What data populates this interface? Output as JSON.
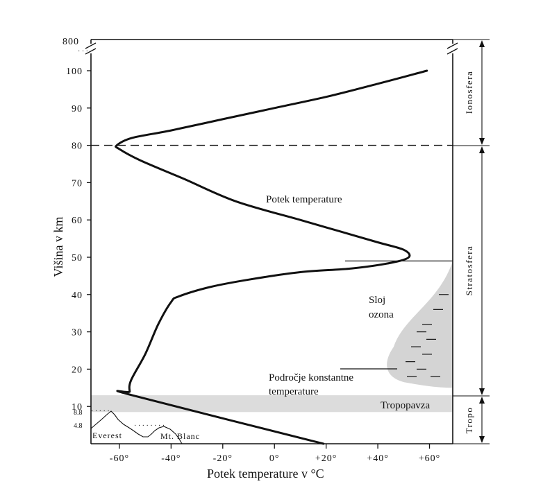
{
  "chart_data": {
    "type": "line",
    "xlabel": "Potek temperature v °C",
    "ylabel": "Višina v km",
    "x_ticks": [
      "-60°",
      "-40°",
      "-20°",
      "0°",
      "+20°",
      "+40°",
      "+60°"
    ],
    "y_ticks": [
      "10",
      "20",
      "30",
      "40",
      "50",
      "60",
      "70",
      "80",
      "90",
      "100"
    ],
    "y_top_label": "800",
    "xlim": [
      -71,
      69
    ],
    "ylim": [
      0,
      100
    ],
    "series": [
      {
        "name": "Potek temperature",
        "points": [
          [
            19,
            0
          ],
          [
            -55,
            13
          ],
          [
            -56,
            14
          ],
          [
            -55.5,
            17
          ],
          [
            -50,
            24
          ],
          [
            -45,
            32
          ],
          [
            -40,
            38
          ],
          [
            -37,
            39.5
          ],
          [
            -25,
            42
          ],
          [
            -10,
            44
          ],
          [
            10,
            46
          ],
          [
            30,
            47
          ],
          [
            45,
            48.5
          ],
          [
            52,
            50
          ],
          [
            50,
            52
          ],
          [
            40,
            54
          ],
          [
            25,
            57
          ],
          [
            10,
            60
          ],
          [
            -15,
            65
          ],
          [
            -35,
            71
          ],
          [
            -52,
            76
          ],
          [
            -60,
            79
          ],
          [
            -61,
            80
          ],
          [
            -55,
            82
          ],
          [
            -40,
            84
          ],
          [
            -20,
            87
          ],
          [
            0,
            90
          ],
          [
            20,
            93
          ],
          [
            40,
            96.5
          ],
          [
            59,
            100
          ]
        ]
      }
    ],
    "reference_lines": {
      "mesopause_km": 80,
      "ozone_top_km": 49
    },
    "bands": {
      "tropopause_km": [
        8.5,
        13
      ]
    },
    "ozone_markers_km": [
      40,
      36,
      32,
      30,
      28,
      26,
      24,
      22,
      20,
      18
    ]
  },
  "labels": {
    "curve": "Potek temperature",
    "ozone_line1": "Sloj",
    "ozone_line2": "ozona",
    "constant_line1": "Področje konstantne",
    "constant_line2": "temperature",
    "tropopause": "Tropopavza",
    "everest": "Everest",
    "everest_height": "8.8",
    "montblanc": "Mt. Blanc",
    "montblanc_height": "4.8"
  },
  "layers": [
    {
      "name": "Ionosfera",
      "from_km": 80,
      "to_km": 800
    },
    {
      "name": "Stratosfera",
      "from_km": 13,
      "to_km": 80
    },
    {
      "name": "Tropo",
      "from_km": 0,
      "to_km": 13
    }
  ],
  "colors": {
    "ink": "#111111",
    "shade": "#d9d9d9",
    "background": "#ffffff"
  }
}
